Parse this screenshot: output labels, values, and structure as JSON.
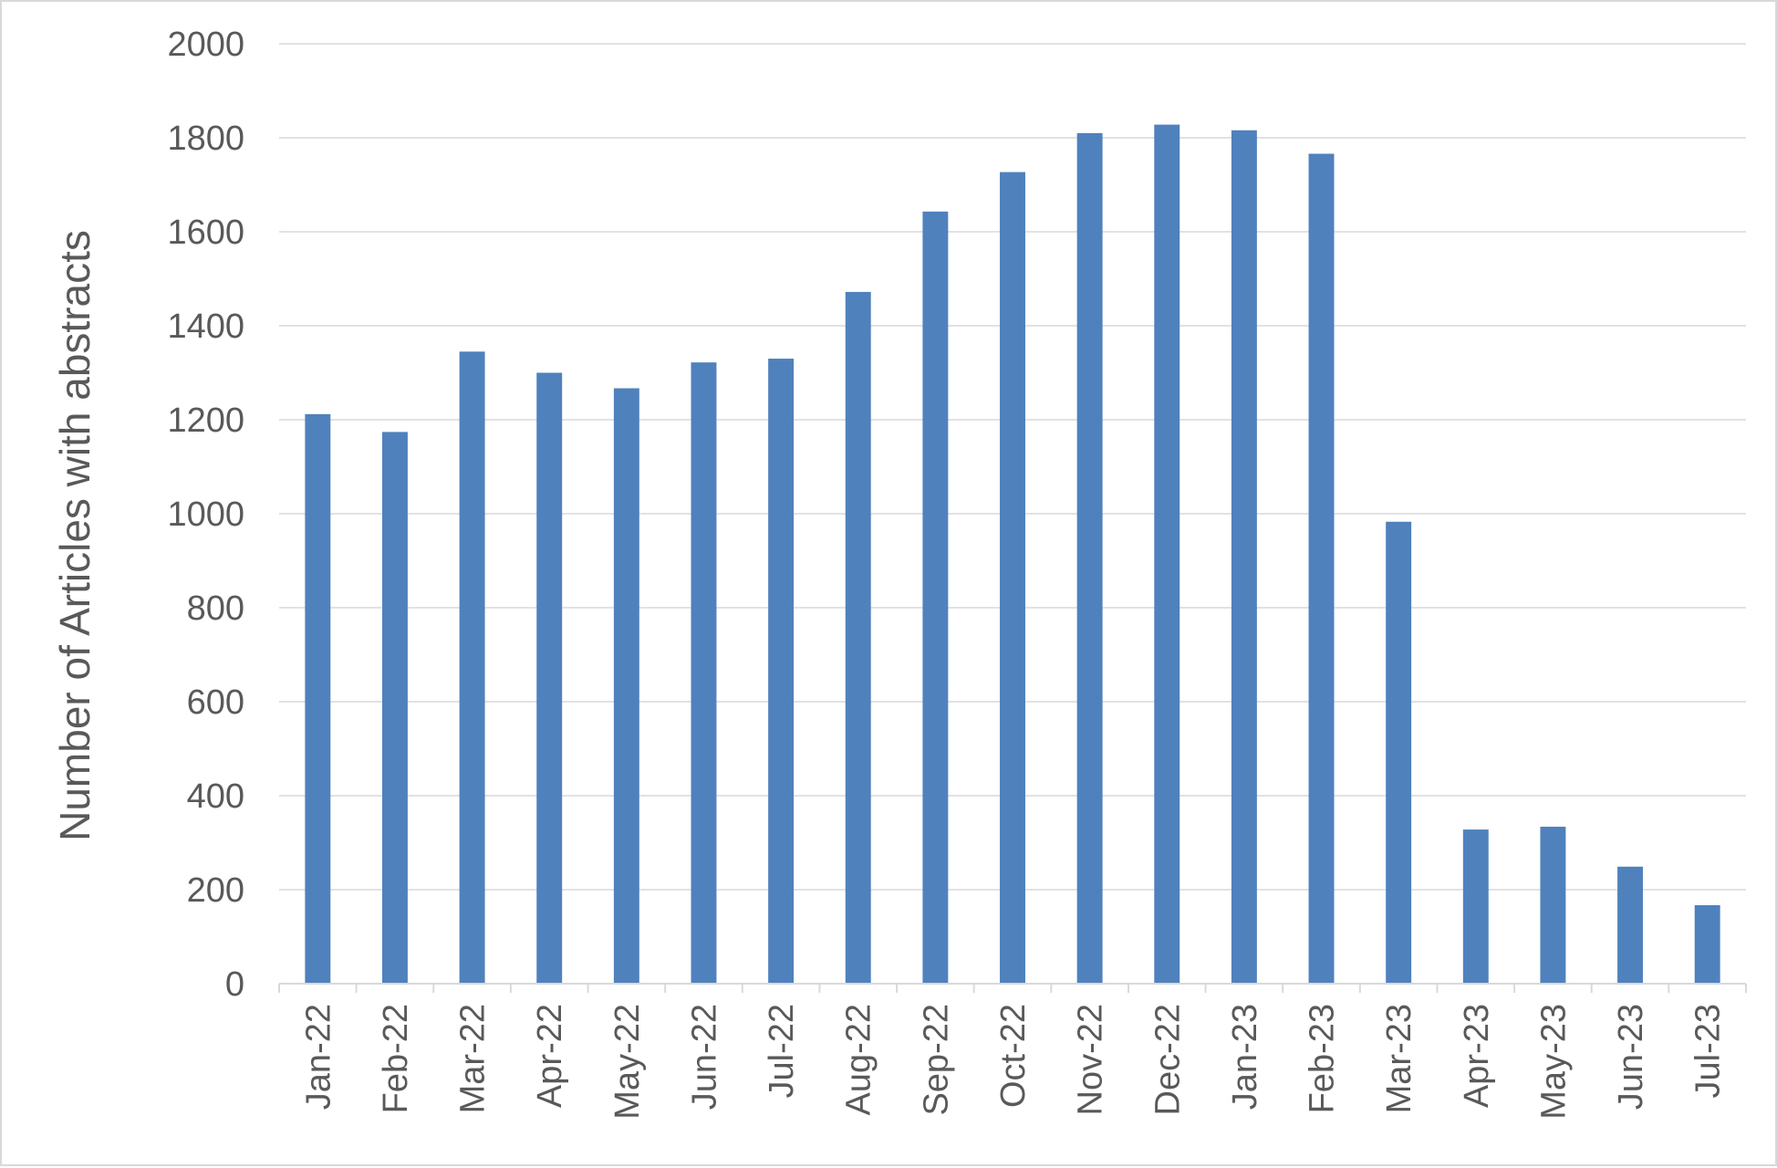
{
  "chart_data": {
    "type": "bar",
    "title": "",
    "xlabel": "",
    "ylabel": "Number of Articles with abstracts",
    "categories": [
      "Jan-22",
      "Feb-22",
      "Mar-22",
      "Apr-22",
      "May-22",
      "Jun-22",
      "Jul-22",
      "Aug-22",
      "Sep-22",
      "Oct-22",
      "Nov-22",
      "Dec-22",
      "Jan-23",
      "Feb-23",
      "Mar-23",
      "Apr-23",
      "May-23",
      "Jun-23",
      "Jul-23"
    ],
    "values": [
      1212,
      1174,
      1345,
      1300,
      1267,
      1322,
      1330,
      1472,
      1643,
      1727,
      1810,
      1828,
      1816,
      1766,
      983,
      328,
      334,
      249,
      167
    ],
    "ylim": [
      0,
      2000
    ],
    "yticks": [
      0,
      200,
      400,
      600,
      800,
      1000,
      1200,
      1400,
      1600,
      1800,
      2000
    ],
    "grid": true,
    "legend": "none",
    "bar_color": "#4f81bd",
    "grid_color": "#d9d9d9",
    "text_color": "#595959"
  }
}
